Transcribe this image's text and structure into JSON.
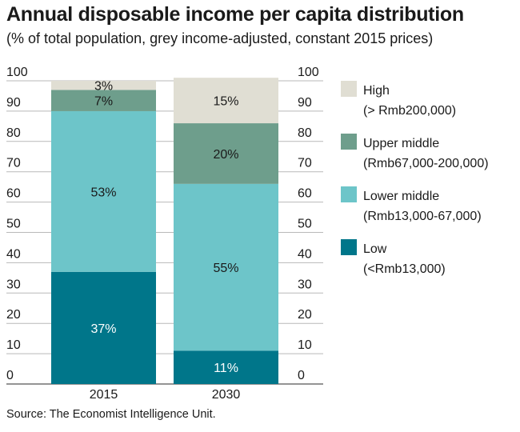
{
  "title": "Annual disposable income per capita distribution",
  "subtitle": "(% of total population, grey income-adjusted, constant 2015 prices)",
  "source": "Source: The Economist Intelligence Unit.",
  "chart_data": {
    "type": "bar",
    "stacked": true,
    "categories": [
      "2015",
      "2030"
    ],
    "ylim": [
      0,
      100
    ],
    "yticks": [
      "0",
      "10",
      "20",
      "30",
      "40",
      "50",
      "60",
      "70",
      "80",
      "90",
      "100"
    ],
    "grid": true,
    "legend_position": "right",
    "series": [
      {
        "name": "Low",
        "range": "(<Rmb13,000)",
        "color": "#00768a",
        "values": [
          37,
          11
        ],
        "labels": [
          "37%",
          "11%"
        ]
      },
      {
        "name": "Lower middle",
        "range": "(Rmb13,000-67,000)",
        "color": "#6dc5c9",
        "values": [
          53,
          55
        ],
        "labels": [
          "53%",
          "55%"
        ]
      },
      {
        "name": "Upper middle",
        "range": "(Rmb67,000-200,000)",
        "color": "#6e9e8c",
        "values": [
          7,
          20
        ],
        "labels": [
          "7%",
          "20%"
        ]
      },
      {
        "name": "High",
        "range": "(> Rmb200,000)",
        "color": "#e0ded3",
        "values": [
          3,
          15
        ],
        "labels": [
          "3%",
          "15%"
        ]
      }
    ]
  }
}
